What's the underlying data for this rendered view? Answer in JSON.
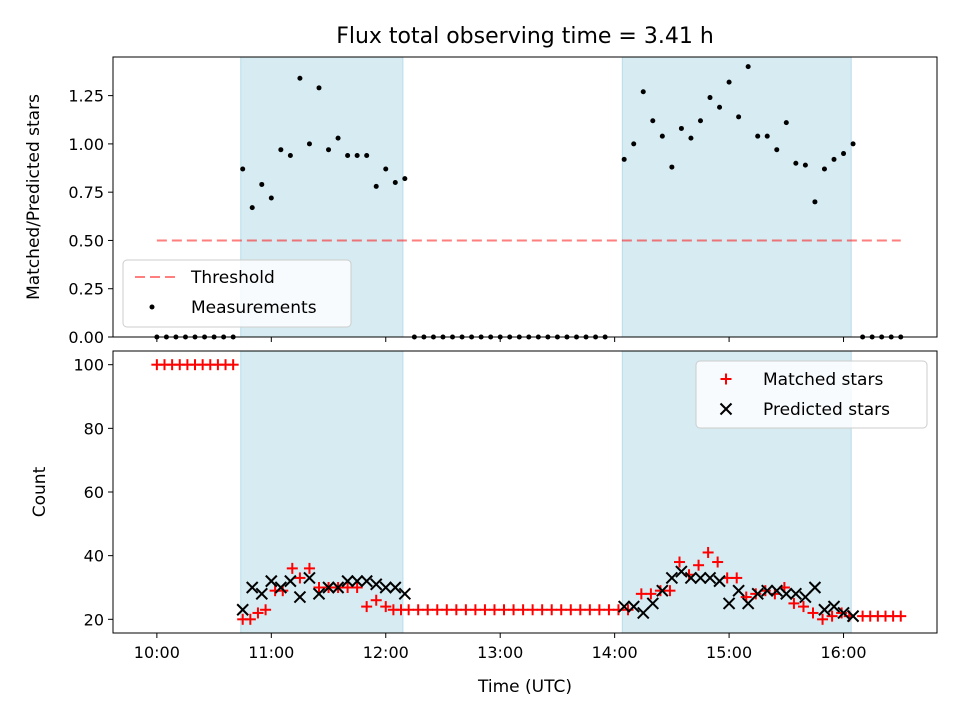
{
  "title": "Flux total observing time = 3.41 h",
  "colors": {
    "shade": "#add8e6",
    "threshold": "#ff0000",
    "measurement": "#000000",
    "matched": "#ff0000",
    "predicted": "#000000"
  },
  "chart_data": [
    {
      "type": "scatter",
      "ylabel": "Matched/Predicted stars",
      "ylim": [
        0,
        1.45
      ],
      "xlim": [
        9.6167,
        16.8167
      ],
      "y_ticks": [
        "0.00",
        "0.25",
        "0.50",
        "0.75",
        "1.00",
        "1.25"
      ],
      "y_tick_values": [
        0,
        0.25,
        0.5,
        0.75,
        1.0,
        1.25
      ],
      "legend_position": "lower-left",
      "legend": {
        "threshold": "Threshold",
        "measurements": "Measurements"
      },
      "shaded_intervals": [
        [
          10.733,
          12.15
        ],
        [
          14.067,
          16.067
        ]
      ],
      "threshold": {
        "value": 0.5,
        "x_range": [
          10.0,
          16.5
        ]
      },
      "measurements": {
        "x": [
          10.0,
          10.0833,
          10.1667,
          10.25,
          10.3333,
          10.4167,
          10.5,
          10.5833,
          10.6667,
          10.75,
          10.8333,
          10.9167,
          11.0,
          11.0833,
          11.1667,
          11.25,
          11.3333,
          11.4167,
          11.5,
          11.5833,
          11.6667,
          11.75,
          11.8333,
          11.9167,
          12.0,
          12.0833,
          12.1667,
          12.25,
          12.3333,
          12.4167,
          12.5,
          12.5833,
          12.6667,
          12.75,
          12.8333,
          12.9167,
          13.0,
          13.0833,
          13.1667,
          13.25,
          13.3333,
          13.4167,
          13.5,
          13.5833,
          13.6667,
          13.75,
          13.8333,
          13.9167,
          14.0833,
          14.1667,
          14.25,
          14.3333,
          14.4167,
          14.5,
          14.5833,
          14.6667,
          14.75,
          14.8333,
          14.9167,
          15.0,
          15.0833,
          15.1667,
          15.25,
          15.3333,
          15.4167,
          15.5,
          15.5833,
          15.6667,
          15.75,
          15.8333,
          15.9167,
          16.0,
          16.0833,
          16.1667,
          16.25,
          16.3333,
          16.4167,
          16.5
        ],
        "y": [
          0,
          0,
          0,
          0,
          0,
          0,
          0,
          0,
          0,
          0.87,
          0.67,
          0.79,
          0.72,
          0.97,
          0.94,
          1.34,
          1.0,
          1.29,
          0.97,
          1.03,
          0.94,
          0.94,
          0.94,
          0.78,
          0.87,
          0.8,
          0.82,
          0,
          0,
          0,
          0,
          0,
          0,
          0,
          0,
          0,
          0,
          0,
          0,
          0,
          0,
          0,
          0,
          0,
          0,
          0,
          0,
          0,
          0.92,
          1.0,
          1.27,
          1.12,
          1.04,
          0.88,
          1.08,
          1.03,
          1.12,
          1.24,
          1.19,
          1.32,
          1.14,
          1.4,
          1.04,
          1.04,
          0.97,
          1.11,
          0.9,
          0.89,
          0.7,
          0.87,
          0.92,
          0.95,
          1.0,
          0,
          0,
          0,
          0,
          0
        ]
      }
    },
    {
      "type": "scatter",
      "xlabel": "Time (UTC)",
      "ylabel": "Count",
      "ylim": [
        15.7,
        104.3
      ],
      "xlim": [
        9.6167,
        16.8167
      ],
      "y_ticks": [
        "20",
        "40",
        "60",
        "80",
        "100"
      ],
      "y_tick_values": [
        20,
        40,
        60,
        80,
        100
      ],
      "x_ticks": [
        "10:00",
        "11:00",
        "12:00",
        "13:00",
        "14:00",
        "15:00",
        "16:00"
      ],
      "x_tick_values": [
        10,
        11,
        12,
        13,
        14,
        15,
        16
      ],
      "legend_position": "upper-right",
      "shaded_intervals": [
        [
          10.733,
          12.15
        ],
        [
          14.067,
          16.067
        ]
      ],
      "series": [
        {
          "name": "Matched stars",
          "marker": "+",
          "x": [
            10.0,
            10.0667,
            10.1333,
            10.2,
            10.2667,
            10.3333,
            10.4,
            10.4667,
            10.5333,
            10.6,
            10.6667,
            10.75,
            10.8167,
            10.8833,
            10.95,
            11.0333,
            11.1,
            11.1833,
            11.25,
            11.3333,
            11.4167,
            11.5,
            11.5833,
            11.6667,
            11.75,
            11.8333,
            11.9167,
            12.0,
            12.0667,
            12.1333,
            12.2,
            12.2833,
            12.3667,
            12.45,
            12.5333,
            12.6167,
            12.7,
            12.7833,
            12.8667,
            12.95,
            13.0333,
            13.1167,
            13.2,
            13.2833,
            13.3667,
            13.45,
            13.5333,
            13.6167,
            13.7,
            13.7833,
            13.8667,
            13.95,
            14.0333,
            14.1167,
            14.2333,
            14.3167,
            14.4,
            14.4833,
            14.5667,
            14.65,
            14.7333,
            14.8167,
            14.9,
            14.9833,
            15.0667,
            15.15,
            15.2333,
            15.3167,
            15.4,
            15.4833,
            15.5667,
            15.65,
            15.7333,
            15.8167,
            15.9,
            15.9833,
            16.05,
            16.1667,
            16.2333,
            16.3,
            16.3667,
            16.4333,
            16.5
          ],
          "y": [
            100,
            100,
            100,
            100,
            100,
            100,
            100,
            100,
            100,
            100,
            100,
            20,
            20,
            22,
            23,
            29,
            29,
            36,
            33,
            36,
            30,
            30,
            30,
            30,
            30,
            24,
            26,
            24,
            23,
            23,
            23,
            23,
            23,
            23,
            23,
            23,
            23,
            23,
            23,
            23,
            23,
            23,
            23,
            23,
            23,
            23,
            23,
            23,
            23,
            23,
            23,
            23,
            23,
            23,
            28,
            28,
            29,
            29,
            38,
            34,
            37,
            41,
            38,
            33,
            33,
            27,
            28,
            29,
            28,
            30,
            25,
            24,
            22,
            20,
            21,
            22,
            21,
            21,
            21,
            21,
            21,
            21,
            21
          ]
        },
        {
          "name": "Predicted stars",
          "marker": "x",
          "x": [
            10.75,
            10.8333,
            10.9167,
            11.0,
            11.0833,
            11.1667,
            11.25,
            11.3333,
            11.4167,
            11.5,
            11.5833,
            11.6667,
            11.75,
            11.8333,
            11.9167,
            12.0,
            12.0833,
            12.1667,
            14.0833,
            14.1667,
            14.25,
            14.3333,
            14.4167,
            14.5,
            14.5833,
            14.6667,
            14.75,
            14.8333,
            14.9167,
            15.0,
            15.0833,
            15.1667,
            15.25,
            15.3333,
            15.4167,
            15.5,
            15.5833,
            15.6667,
            15.75,
            15.8333,
            15.9167,
            16.0,
            16.0833
          ],
          "y": [
            23,
            30,
            28,
            32,
            30,
            32,
            27,
            33,
            28,
            30,
            30,
            32,
            32,
            32,
            31,
            30,
            30,
            28,
            24,
            24,
            22,
            25,
            29,
            33,
            35,
            33,
            33,
            33,
            32,
            25,
            29,
            25,
            28,
            29,
            29,
            28,
            28,
            27,
            30,
            23,
            24,
            22,
            21
          ]
        }
      ]
    }
  ]
}
